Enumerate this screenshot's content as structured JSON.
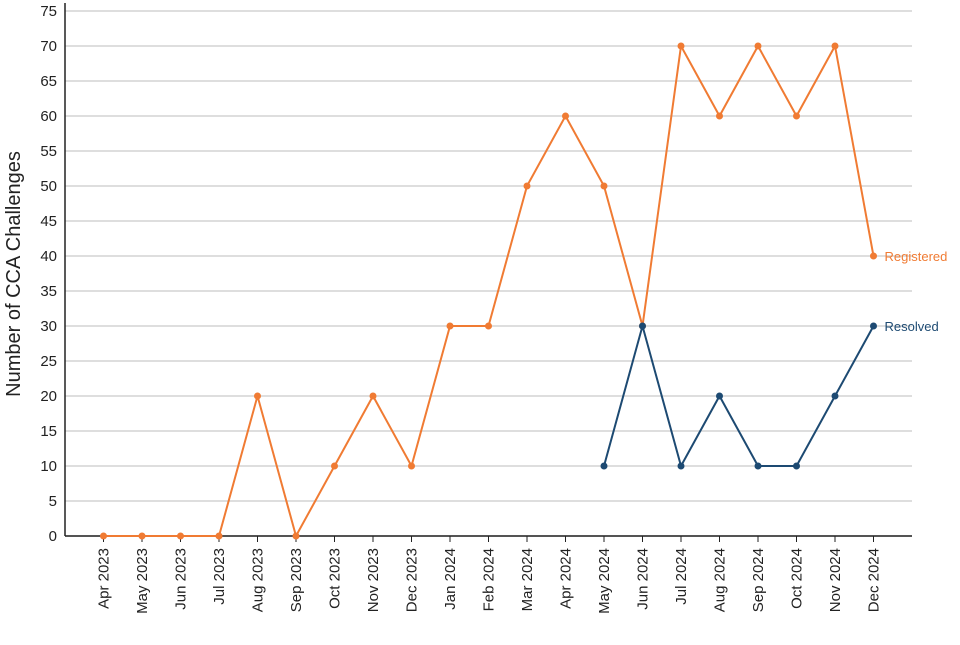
{
  "chart_data": {
    "type": "line",
    "y_label": "Number of CCA Challenges",
    "categories": [
      "Apr 2023",
      "May 2023",
      "Jun 2023",
      "Jul 2023",
      "Aug 2023",
      "Sep 2023",
      "Oct 2023",
      "Nov 2023",
      "Dec 2023",
      "Jan 2024",
      "Feb 2024",
      "Mar 2024",
      "Apr 2024",
      "May 2024",
      "Jun 2024",
      "Jul 2024",
      "Aug 2024",
      "Sep 2024",
      "Oct 2024",
      "Nov 2024",
      "Dec 2024"
    ],
    "series": [
      {
        "name": "Registered",
        "color": "#f07b33",
        "values": [
          0,
          0,
          0,
          0,
          20,
          0,
          10,
          20,
          10,
          30,
          30,
          50,
          60,
          50,
          30,
          70,
          60,
          70,
          60,
          70,
          40
        ]
      },
      {
        "name": "Resolved",
        "color": "#1d4a72",
        "values": [
          null,
          null,
          null,
          null,
          null,
          null,
          null,
          null,
          null,
          null,
          null,
          null,
          null,
          10,
          30,
          10,
          20,
          10,
          10,
          20,
          30
        ]
      }
    ],
    "ylim": [
      0,
      75
    ],
    "yticks": [
      0,
      5,
      10,
      15,
      20,
      25,
      30,
      35,
      40,
      45,
      50,
      55,
      60,
      65,
      70,
      75
    ],
    "grid": true
  }
}
